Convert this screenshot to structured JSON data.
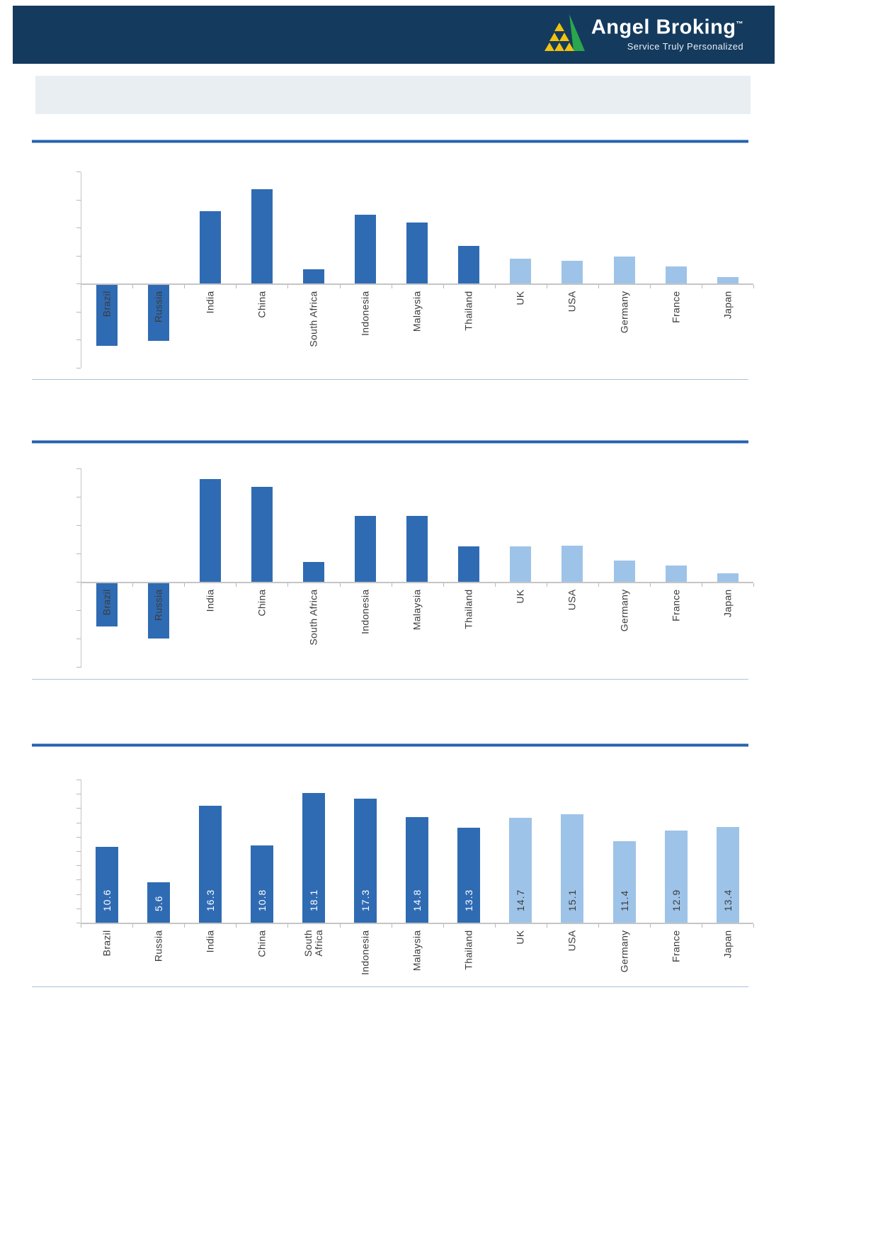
{
  "header": {
    "brand": "Angel Broking",
    "tm": "™",
    "tagline": "Service Truly Personalized",
    "logo_icon": "angel-pyramid-logo",
    "colors": {
      "navy": "#143A5E",
      "green": "#2AA64C",
      "yellow": "#F2C20F"
    }
  },
  "colors": {
    "bar_emerging": "#2F6BB3",
    "bar_developed": "#9EC3E8",
    "axis_gray": "#C5C5C5",
    "tick_gray": "#B8B8B8",
    "label_text": "#3C3C3C",
    "separator_dark": "#2761AE",
    "separator_light": "#8FB0DC",
    "thin_rule": "#A9C3DE",
    "banner_bg": "#E9EEF3",
    "value_label_on_dark": "#FFFFFF",
    "value_label_on_light": "#3C3C3C"
  },
  "chart_data": [
    {
      "type": "bar",
      "title": "",
      "categories": [
        "Brazil",
        "Russia",
        "India",
        "China",
        "South Africa",
        "Indonesia",
        "Malaysia",
        "Thailand",
        "UK",
        "USA",
        "Germany",
        "France",
        "Japan"
      ],
      "values": [
        -10.9,
        -10.0,
        12.9,
        16.8,
        2.5,
        12.3,
        10.9,
        6.7,
        4.4,
        4.1,
        4.8,
        3.1,
        1.2
      ],
      "groups": [
        "emerging",
        "emerging",
        "emerging",
        "emerging",
        "emerging",
        "emerging",
        "emerging",
        "emerging",
        "developed",
        "developed",
        "developed",
        "developed",
        "developed"
      ],
      "ylim": [
        -15,
        20
      ],
      "ytick_step": 5,
      "y_tick_labels_visible": false,
      "value_labels": null,
      "legend": "none",
      "grid": false
    },
    {
      "type": "bar",
      "title": "",
      "categories": [
        "Brazil",
        "Russia",
        "India",
        "China",
        "South Africa",
        "Indonesia",
        "Malaysia",
        "Thailand",
        "UK",
        "USA",
        "Germany",
        "France",
        "Japan"
      ],
      "values": [
        -7.6,
        -9.7,
        18.1,
        16.7,
        3.5,
        11.6,
        11.6,
        6.2,
        6.2,
        6.4,
        3.8,
        2.9,
        1.5
      ],
      "groups": [
        "emerging",
        "emerging",
        "emerging",
        "emerging",
        "emerging",
        "emerging",
        "emerging",
        "emerging",
        "developed",
        "developed",
        "developed",
        "developed",
        "developed"
      ],
      "ylim": [
        -15,
        20
      ],
      "ytick_step": 5,
      "y_tick_labels_visible": false,
      "value_labels": null,
      "legend": "none",
      "grid": false
    },
    {
      "type": "bar",
      "title": "",
      "categories": [
        "Brazil",
        "Russia",
        "India",
        "China",
        "South\nAfrica",
        "Indonesia",
        "Malaysia",
        "Thailand",
        "UK",
        "USA",
        "Germany",
        "France",
        "Japan"
      ],
      "values": [
        10.6,
        5.6,
        16.3,
        10.8,
        18.1,
        17.3,
        14.8,
        13.3,
        14.7,
        15.1,
        11.4,
        12.9,
        13.4
      ],
      "groups": [
        "emerging",
        "emerging",
        "emerging",
        "emerging",
        "emerging",
        "emerging",
        "emerging",
        "emerging",
        "developed",
        "developed",
        "developed",
        "developed",
        "developed"
      ],
      "value_labels": [
        "10.6",
        "5.6",
        "16.3",
        "10.8",
        "18.1",
        "17.3",
        "14.8",
        "13.3",
        "14.7",
        "15.1",
        "11.4",
        "12.9",
        "13.4"
      ],
      "ylim": [
        0,
        20
      ],
      "ytick_step": 2,
      "y_tick_labels_visible": false,
      "legend": "none",
      "grid": false
    }
  ]
}
